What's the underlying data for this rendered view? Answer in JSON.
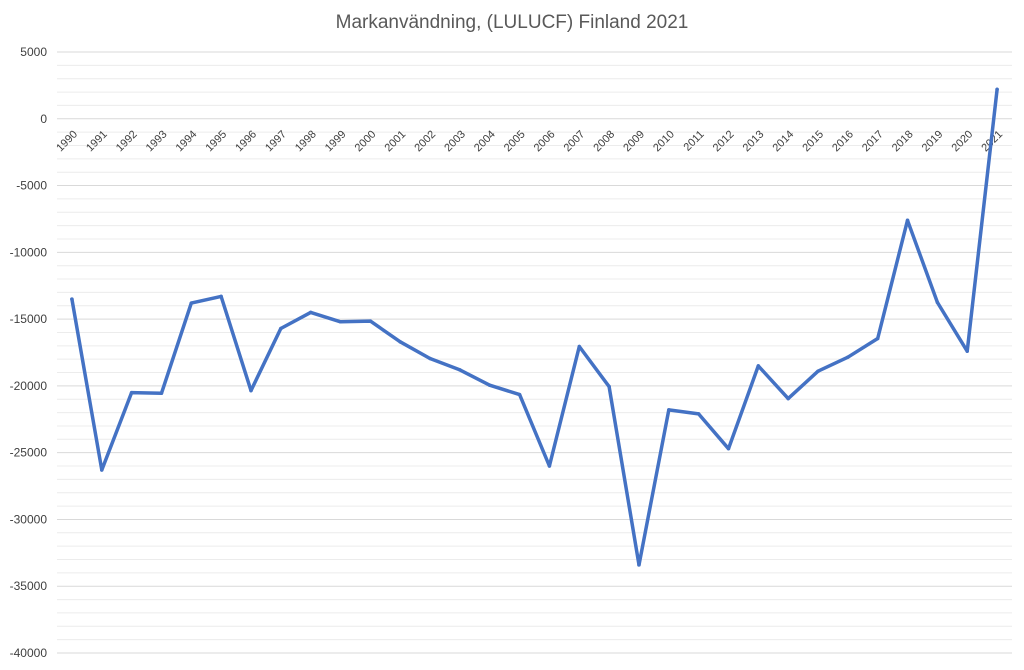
{
  "chart_data": {
    "type": "line",
    "title": "Markanvändning, (LULUCF) Finland 2021",
    "xlabel": "",
    "ylabel": "",
    "ylim": [
      -40000,
      5000
    ],
    "y_ticks": [
      "5000",
      "0",
      "-5000",
      "-10000",
      "-15000",
      "-20000",
      "-25000",
      "-30000",
      "-35000",
      "-40000"
    ],
    "grid": true,
    "legend": "none",
    "categories": [
      "1990",
      "1991",
      "1992",
      "1993",
      "1994",
      "1995",
      "1996",
      "1997",
      "1998",
      "1999",
      "2000",
      "2001",
      "2002",
      "2003",
      "2004",
      "2005",
      "2006",
      "2007",
      "2008",
      "2009",
      "2010",
      "2011",
      "2012",
      "2013",
      "2014",
      "2015",
      "2016",
      "2017",
      "2018",
      "2019",
      "2020",
      "2021"
    ],
    "series": [
      {
        "color": "#4472C4",
        "values": [
          -13500,
          -26300,
          -20500,
          -20550,
          -13800,
          -13300,
          -20350,
          -15700,
          -14500,
          -15200,
          -15150,
          -16700,
          -17950,
          -18800,
          -19950,
          -20650,
          -26000,
          -17050,
          -20050,
          -33400,
          -21800,
          -22100,
          -24700,
          -18500,
          -20950,
          -18900,
          -17850,
          -16450,
          -7600,
          -13750,
          -17400,
          2200
        ]
      }
    ]
  }
}
